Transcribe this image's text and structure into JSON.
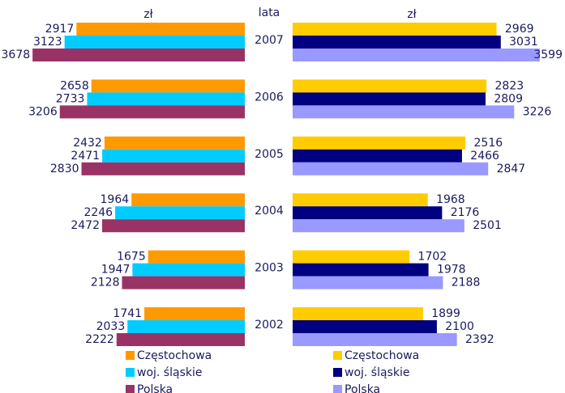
{
  "chart_data": [
    {
      "type": "hbar-left",
      "category_label": "lata",
      "unit_label": "zł",
      "categories": [
        "2007",
        "2006",
        "2005",
        "2004",
        "2003",
        "2002"
      ],
      "xlim": [
        0,
        3680
      ],
      "series": [
        {
          "name": "Częstochowa",
          "color": "#ff9900",
          "values": [
            2917,
            2658,
            2432,
            1964,
            1675,
            1741
          ]
        },
        {
          "name": "woj. śląskie",
          "color": "#00ccff",
          "values": [
            3123,
            2733,
            2471,
            2246,
            1947,
            2033
          ]
        },
        {
          "name": "Polska",
          "color": "#993366",
          "values": [
            3678,
            3206,
            2830,
            2472,
            2128,
            2222
          ]
        }
      ]
    },
    {
      "type": "hbar-right",
      "unit_label": "zł",
      "xlim": [
        0,
        3600
      ],
      "series": [
        {
          "name": "Częstochowa",
          "color": "#ffcc00",
          "values": [
            2969,
            2823,
            2516,
            1968,
            1702,
            1899
          ]
        },
        {
          "name": "woj. śląskie",
          "color": "#000080",
          "values": [
            3031,
            2809,
            2466,
            2176,
            1978,
            2100
          ]
        },
        {
          "name": "Polska",
          "color": "#9999ff",
          "values": [
            3599,
            3226,
            2847,
            2501,
            2188,
            2392
          ]
        }
      ]
    }
  ]
}
